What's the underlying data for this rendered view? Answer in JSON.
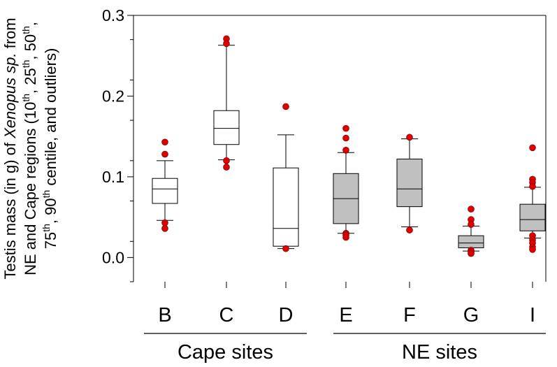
{
  "chart_data": {
    "type": "boxplot",
    "ylabel_lines": [
      [
        {
          "text": "Testis mass (in g) of "
        },
        {
          "text": "Xenopus",
          "italic": true
        },
        {
          "text": " "
        },
        {
          "text": "sp.",
          "italic": true
        },
        {
          "text": " from"
        }
      ],
      [
        {
          "text": "NE and Cape regions (10"
        },
        {
          "text": "th",
          "sup": true
        },
        {
          "text": ", 25"
        },
        {
          "text": "th",
          "sup": true
        },
        {
          "text": ", 50"
        },
        {
          "text": "th",
          "sup": true
        },
        {
          "text": ","
        }
      ],
      [
        {
          "text": "75"
        },
        {
          "text": "th",
          "sup": true
        },
        {
          "text": ", 90"
        },
        {
          "text": "th",
          "sup": true
        },
        {
          "text": " centile, and outliers)"
        }
      ]
    ],
    "ylim": [
      -0.03,
      0.3
    ],
    "yticks": [
      {
        "value": 0.0,
        "label": "0.0"
      },
      {
        "value": 0.1,
        "label": "0.1"
      },
      {
        "value": 0.2,
        "label": "0.2"
      },
      {
        "value": 0.3,
        "label": "0.3"
      }
    ],
    "grid": false,
    "categories": [
      "B",
      "C",
      "D",
      "E",
      "F",
      "G",
      "I"
    ],
    "groups": [
      {
        "label": "Cape sites",
        "categories": [
          "B",
          "C",
          "D"
        ]
      },
      {
        "label": "NE sites",
        "categories": [
          "E",
          "F",
          "G",
          "I"
        ]
      }
    ],
    "colors": {
      "cape_fill": "#ffffff",
      "ne_fill": "#c0c0c0",
      "outlier": "#e00000"
    },
    "boxes": [
      {
        "category": "B",
        "group": "Cape sites",
        "p10": 0.046,
        "q1": 0.067,
        "median": 0.085,
        "q3": 0.098,
        "p90": 0.12,
        "outliers": [
          0.143,
          0.128,
          0.043,
          0.036
        ]
      },
      {
        "category": "C",
        "group": "Cape sites",
        "p10": 0.121,
        "q1": 0.14,
        "median": 0.16,
        "q3": 0.182,
        "p90": 0.263,
        "outliers": [
          0.271,
          0.265,
          0.12,
          0.112
        ]
      },
      {
        "category": "D",
        "group": "Cape sites",
        "p10": 0.011,
        "q1": 0.014,
        "median": 0.036,
        "q3": 0.111,
        "p90": 0.152,
        "outliers": [
          0.187,
          0.011
        ]
      },
      {
        "category": "E",
        "group": "NE sites",
        "p10": 0.03,
        "q1": 0.042,
        "median": 0.073,
        "q3": 0.104,
        "p90": 0.13,
        "outliers": [
          0.16,
          0.148,
          0.133,
          0.03,
          0.028,
          0.025
        ]
      },
      {
        "category": "F",
        "group": "NE sites",
        "p10": 0.038,
        "q1": 0.063,
        "median": 0.085,
        "q3": 0.122,
        "p90": 0.147,
        "outliers": [
          0.149,
          0.034
        ]
      },
      {
        "category": "G",
        "group": "NE sites",
        "p10": 0.008,
        "q1": 0.012,
        "median": 0.018,
        "q3": 0.027,
        "p90": 0.039,
        "outliers": [
          0.06,
          0.047,
          0.041,
          0.009,
          0.007,
          0.005
        ]
      },
      {
        "category": "I",
        "group": "NE sites",
        "p10": 0.024,
        "q1": 0.033,
        "median": 0.047,
        "q3": 0.066,
        "p90": 0.087,
        "outliers": [
          0.136,
          0.097,
          0.093,
          0.088,
          0.027,
          0.022,
          0.018,
          0.013,
          0.01
        ]
      }
    ]
  }
}
